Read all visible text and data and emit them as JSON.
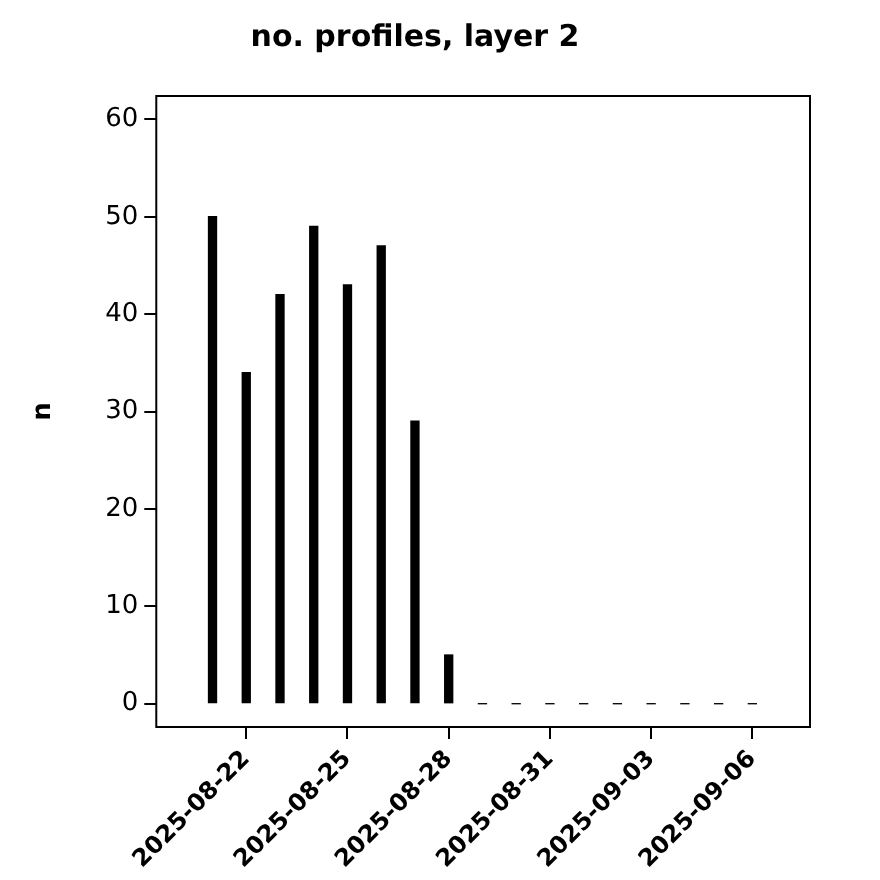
{
  "chart_data": {
    "type": "bar",
    "title": "no. profiles, layer 2",
    "ylabel": "n",
    "x": [
      "2025-08-21",
      "2025-08-22",
      "2025-08-23",
      "2025-08-24",
      "2025-08-25",
      "2025-08-26",
      "2025-08-27",
      "2025-08-28",
      "2025-08-29",
      "2025-08-30",
      "2025-08-31",
      "2025-09-01",
      "2025-09-02",
      "2025-09-03",
      "2025-09-04",
      "2025-09-05",
      "2025-09-06"
    ],
    "values": [
      50,
      34,
      42,
      49,
      43,
      47,
      29,
      5,
      0,
      0,
      0,
      0,
      0,
      0,
      0,
      0,
      0
    ],
    "color": "#000000",
    "xlim": [
      "2025-08-19T08:00",
      "2025-09-07T17:00"
    ],
    "xticks": [
      "2025-08-22",
      "2025-08-25",
      "2025-08-28",
      "2025-08-31",
      "2025-09-03",
      "2025-09-06"
    ],
    "ylim": [
      -2.4,
      62.4
    ],
    "yticks": [
      0,
      10,
      20,
      30,
      40,
      50,
      60
    ],
    "grid": false,
    "legend": false
  }
}
